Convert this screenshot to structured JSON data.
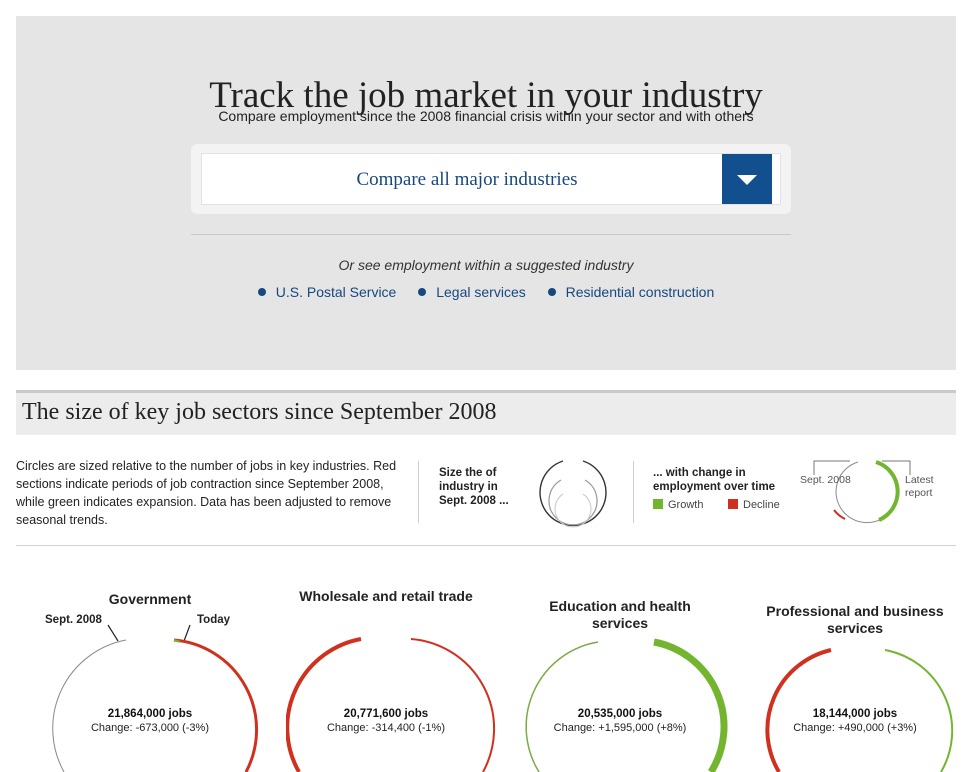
{
  "hero": {
    "title": "Track the job market in your industry",
    "subtitle": "Compare employment since the 2008 financial crisis within your sector and with others",
    "select": {
      "selected": "Compare all major industries",
      "button_icon": "chevron-down-icon"
    },
    "or_text": "Or see employment within a suggested industry",
    "suggestions": [
      "U.S. Postal Service",
      "Legal services",
      "Residential construction"
    ]
  },
  "section": {
    "title": "The size of key job sectors since September 2008",
    "description": "Circles are sized relative to the number of jobs in key industries. Red sections indicate periods of job contraction since September 2008, while green indicates expansion. Data has been adjusted to remove seasonal trends.",
    "legend_size": "Size the of industry in Sept. 2008 ...",
    "legend_change": "... with change in employment over time",
    "growth": "Growth",
    "decline": "Decline",
    "start_label": "Sept. 2008",
    "end_label": "Latest report"
  },
  "colors": {
    "accent": "#124f8f",
    "link": "#16487e",
    "growth": "#74b52f",
    "decline": "#d0311f"
  },
  "industries": [
    {
      "name": "Government",
      "jobs": "21,864,000 jobs",
      "change": "Change: -673,000 (-3%)",
      "start_label": "Sept. 2008",
      "end_label": "Today",
      "trend": "decline"
    },
    {
      "name": "Wholesale and retail trade",
      "jobs": "20,771,600 jobs",
      "change": "Change: -314,400 (-1%)",
      "trend": "decline"
    },
    {
      "name": "Education and health services",
      "jobs": "20,535,000 jobs",
      "change": "Change: +1,595,000 (+8%)",
      "trend": "growth"
    },
    {
      "name": "Professional and business services",
      "jobs": "18,144,000 jobs",
      "change": "Change: +490,000 (+3%)",
      "trend": "growth"
    }
  ]
}
